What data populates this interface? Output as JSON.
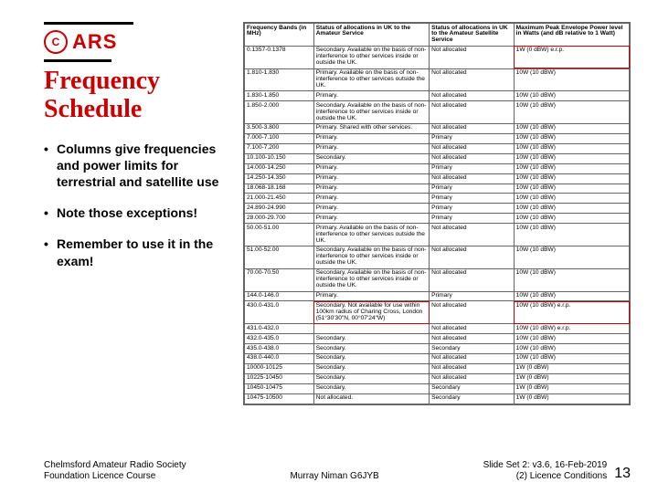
{
  "logo": {
    "mark": "C",
    "text": "ARS"
  },
  "title": "Frequency Schedule",
  "bullets": [
    "Columns give frequencies and power limits for terrestrial and satellite use",
    "Note those exceptions!",
    "Remember to use it in the exam!"
  ],
  "table": {
    "headers": [
      "Frequency Bands (in MHz)",
      "Status of allocations in UK to the Amateur Service",
      "Status of allocations in UK to the Amateur Satellite Service",
      "Maximum Peak Envelope Power level in Watts (and dB relative to 1 Watt)"
    ],
    "rows": [
      {
        "cells": [
          "0.1357-0.1378",
          "Secondary. Available on the basis of non-interference to other services inside or outside the UK.",
          "Not allocated",
          "1W (0 dBW) e.r.p."
        ],
        "hl": [
          3
        ]
      },
      {
        "cells": [
          "1.810-1.830",
          "Primary. Available on the basis of non-interference to other services outside the UK.",
          "Not allocated",
          "10W (10 dBW)"
        ]
      },
      {
        "cells": [
          "1.830-1.850",
          "Primary.",
          "Not allocated",
          "10W (10 dBW)"
        ]
      },
      {
        "cells": [
          "1.850-2.000",
          "Secondary. Available on the basis of non-interference to other services inside or outside the UK.",
          "Not allocated",
          "10W (10 dBW)"
        ]
      },
      {
        "cells": [
          "3.500-3.800",
          "Primary. Shared with other services.",
          "Not allocated",
          "10W (10 dBW)"
        ]
      },
      {
        "cells": [
          "7.000-7.100",
          "Primary.",
          "Primary",
          "10W (10 dBW)"
        ]
      },
      {
        "cells": [
          "7.100-7.200",
          "Primary.",
          "Not allocated",
          "10W (10 dBW)"
        ]
      },
      {
        "cells": [
          "10.100-10.150",
          "Secondary.",
          "Not allocated",
          "10W (10 dBW)"
        ]
      },
      {
        "cells": [
          "14.000-14.250",
          "Primary.",
          "Primary",
          "10W (10 dBW)"
        ]
      },
      {
        "cells": [
          "14.250-14.350",
          "Primary.",
          "Not allocated",
          "10W (10 dBW)"
        ]
      },
      {
        "cells": [
          "18.068-18.168",
          "Primary.",
          "Primary",
          "10W (10 dBW)"
        ]
      },
      {
        "cells": [
          "21.000-21.450",
          "Primary.",
          "Primary",
          "10W (10 dBW)"
        ]
      },
      {
        "cells": [
          "24.890-24.990",
          "Primary.",
          "Primary",
          "10W (10 dBW)"
        ]
      },
      {
        "cells": [
          "28.000-29.700",
          "Primary.",
          "Primary",
          "10W (10 dBW)"
        ]
      },
      {
        "cells": [
          "50.00-51.00",
          "Primary. Available on the basis of non-interference to other services outside the UK.",
          "Not allocated",
          "10W (10 dBW)"
        ]
      },
      {
        "cells": [
          "51.00-52.00",
          "Secondary. Available on the basis of non-interference to other services inside or outside the UK.",
          "Not allocated",
          "10W (10 dBW)"
        ]
      },
      {
        "cells": [
          "70.00-70.50",
          "Secondary. Available on the basis of non-interference to other services inside or outside the UK.",
          "Not allocated",
          "10W (10 dBW)"
        ]
      },
      {
        "cells": [
          "144.0-146.0",
          "Primary.",
          "Primary",
          "10W (10 dBW)"
        ]
      },
      {
        "cells": [
          "430.0-431.0",
          "Secondary. Not available for use within 100km radius of Charing Cross, London (51°30'30\"N, 00°07'24\"W)",
          "Not allocated",
          "10W (10 dBW) e.r.p."
        ],
        "hl": [
          1,
          3
        ]
      },
      {
        "cells": [
          "431.0-432.0",
          "",
          "Not allocated",
          "10W (10 dBW) e.r.p."
        ]
      },
      {
        "cells": [
          "432.0-435.0",
          "Secondary.",
          "Not allocated",
          "10W (10 dBW)"
        ]
      },
      {
        "cells": [
          "435.0-438.0",
          "Secondary.",
          "Secondary",
          "10W (10 dBW)"
        ]
      },
      {
        "cells": [
          "438.0-440.0",
          "Secondary.",
          "Not allocated",
          "10W (10 dBW)"
        ]
      },
      {
        "cells": [
          "10000-10125",
          "Secondary.",
          "Not allocated",
          "1W (0 dBW)"
        ]
      },
      {
        "cells": [
          "10225-10450",
          "Secondary.",
          "Not allocated",
          "1W (0 dBW)"
        ]
      },
      {
        "cells": [
          "10450-10475",
          "Secondary.",
          "Secondary",
          "1W (0 dBW)"
        ]
      },
      {
        "cells": [
          "10475-10500",
          "Not allocated.",
          "Secondary",
          "1W (0 dBW)"
        ]
      }
    ]
  },
  "footer": {
    "left_1": "Chelmsford Amateur Radio Society",
    "left_2": "Foundation Licence Course",
    "center": "Murray Niman G6JYB",
    "right_1": "Slide Set 2: v3.6, 16-Feb-2019",
    "right_2": "(2) Licence Conditions",
    "page": "13"
  },
  "colors": {
    "accent": "#c00000",
    "border": "#666666",
    "text": "#000000",
    "bg": "#ffffff"
  }
}
